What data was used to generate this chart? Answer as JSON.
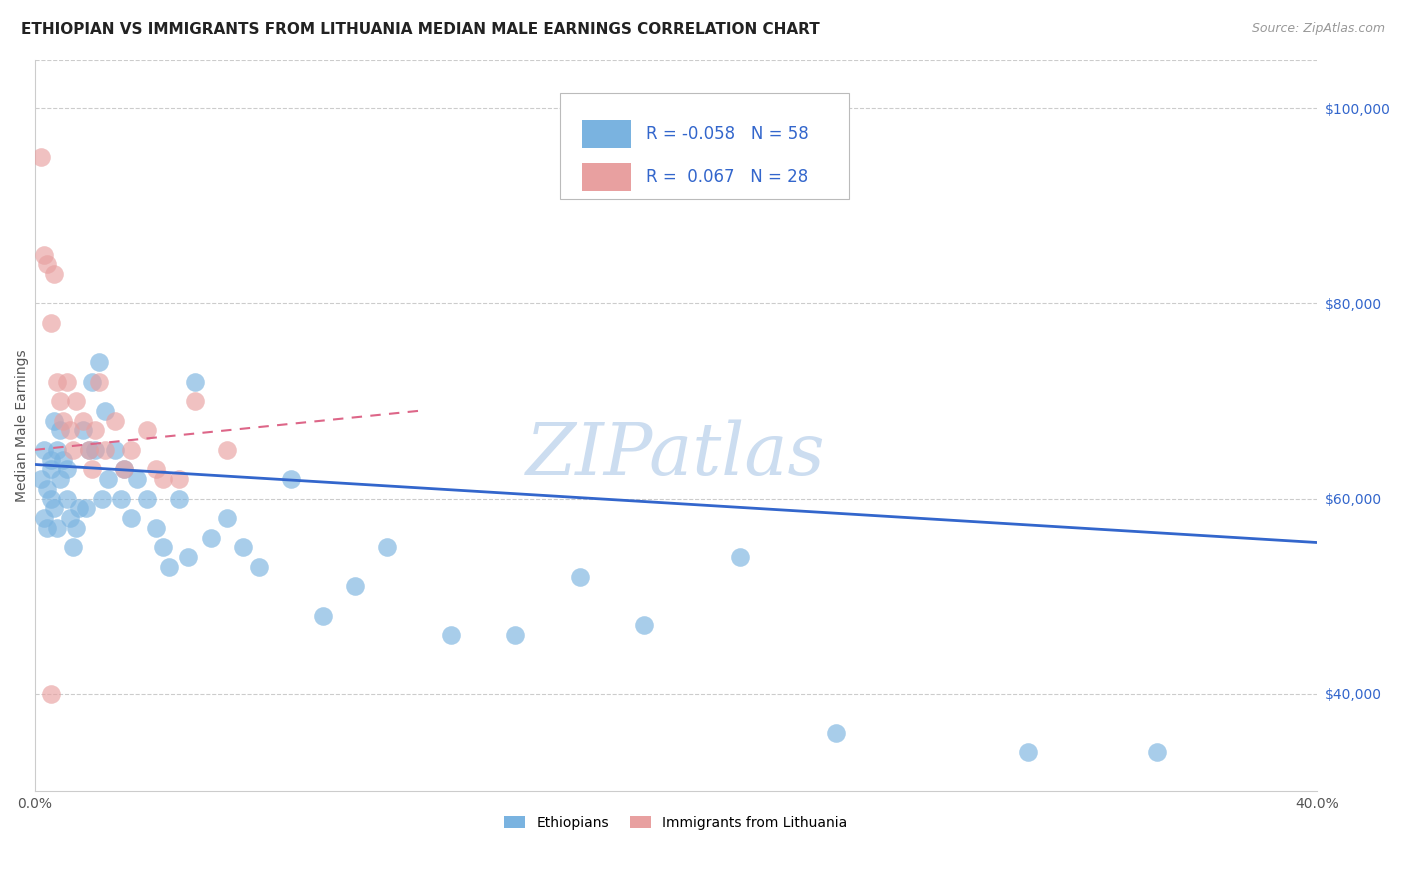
{
  "title": "ETHIOPIAN VS IMMIGRANTS FROM LITHUANIA MEDIAN MALE EARNINGS CORRELATION CHART",
  "source": "Source: ZipAtlas.com",
  "ylabel": "Median Male Earnings",
  "watermark": "ZIPatlas",
  "xlim": [
    0.0,
    0.4
  ],
  "ylim": [
    30000,
    105000
  ],
  "yticks": [
    40000,
    60000,
    80000,
    100000
  ],
  "ytick_labels": [
    "$40,000",
    "$60,000",
    "$80,000",
    "$100,000"
  ],
  "legend_r_blue": "-0.058",
  "legend_n_blue": "58",
  "legend_r_pink": "0.067",
  "legend_n_pink": "28",
  "blue_scatter_x": [
    0.002,
    0.003,
    0.003,
    0.004,
    0.004,
    0.005,
    0.005,
    0.005,
    0.006,
    0.006,
    0.007,
    0.007,
    0.008,
    0.008,
    0.009,
    0.01,
    0.01,
    0.011,
    0.012,
    0.013,
    0.014,
    0.015,
    0.016,
    0.017,
    0.018,
    0.019,
    0.02,
    0.021,
    0.022,
    0.023,
    0.025,
    0.027,
    0.028,
    0.03,
    0.032,
    0.035,
    0.038,
    0.04,
    0.042,
    0.045,
    0.048,
    0.05,
    0.055,
    0.06,
    0.065,
    0.07,
    0.08,
    0.09,
    0.1,
    0.11,
    0.13,
    0.15,
    0.17,
    0.19,
    0.22,
    0.25,
    0.31,
    0.35
  ],
  "blue_scatter_y": [
    62000,
    58000,
    65000,
    61000,
    57000,
    64000,
    63000,
    60000,
    59000,
    68000,
    65000,
    57000,
    62000,
    67000,
    64000,
    60000,
    63000,
    58000,
    55000,
    57000,
    59000,
    67000,
    59000,
    65000,
    72000,
    65000,
    74000,
    60000,
    69000,
    62000,
    65000,
    60000,
    63000,
    58000,
    62000,
    60000,
    57000,
    55000,
    53000,
    60000,
    54000,
    72000,
    56000,
    58000,
    55000,
    53000,
    62000,
    48000,
    51000,
    55000,
    46000,
    46000,
    52000,
    47000,
    54000,
    36000,
    34000,
    34000
  ],
  "pink_scatter_x": [
    0.002,
    0.003,
    0.004,
    0.005,
    0.006,
    0.007,
    0.008,
    0.009,
    0.01,
    0.011,
    0.012,
    0.013,
    0.015,
    0.017,
    0.018,
    0.019,
    0.02,
    0.022,
    0.025,
    0.028,
    0.03,
    0.035,
    0.038,
    0.04,
    0.045,
    0.05,
    0.06,
    0.005
  ],
  "pink_scatter_y": [
    95000,
    85000,
    84000,
    78000,
    83000,
    72000,
    70000,
    68000,
    72000,
    67000,
    65000,
    70000,
    68000,
    65000,
    63000,
    67000,
    72000,
    65000,
    68000,
    63000,
    65000,
    67000,
    63000,
    62000,
    62000,
    70000,
    65000,
    40000
  ],
  "blue_line_x": [
    0.0,
    0.4
  ],
  "blue_line_y": [
    63500,
    55500
  ],
  "pink_line_x": [
    0.0,
    0.12
  ],
  "pink_line_y": [
    65000,
    69000
  ],
  "blue_color": "#7ab3e0",
  "pink_color": "#e8a0a0",
  "blue_line_color": "#3366cc",
  "pink_line_color": "#dd6688",
  "grid_color": "#cccccc",
  "background_color": "#ffffff",
  "title_fontsize": 11,
  "axis_label_fontsize": 10,
  "tick_fontsize": 10,
  "legend_fontsize": 12,
  "watermark_fontsize": 52,
  "watermark_color": "#ccddf0",
  "scatter_alpha": 0.65,
  "scatter_size": 180
}
